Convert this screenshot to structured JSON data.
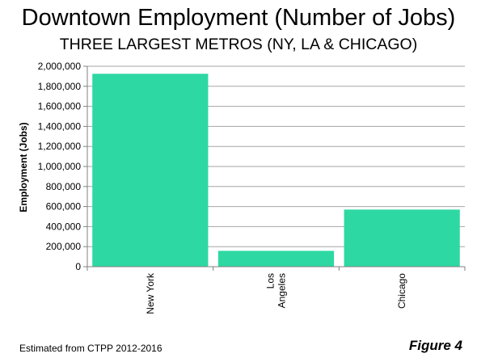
{
  "chart_data": {
    "type": "bar",
    "title": "Downtown Employment (Number of Jobs)",
    "subtitle": "THREE LARGEST METROS (NY, LA & CHICAGO)",
    "xlabel": "",
    "ylabel": "Employment (Jobs)",
    "categories": [
      [
        "New York"
      ],
      [
        "Los",
        "Angeles"
      ],
      [
        "Chicago"
      ]
    ],
    "values": [
      1925000,
      158000,
      570000
    ],
    "ylim": [
      0,
      2000000
    ],
    "yticks": [
      0,
      200000,
      400000,
      600000,
      800000,
      1000000,
      1200000,
      1400000,
      1600000,
      1800000,
      2000000
    ],
    "ytick_labels": [
      "0",
      "200,000",
      "400,000",
      "600,000",
      "800,000",
      "1,000,000",
      "1,200,000",
      "1,400,000",
      "1,600,000",
      "1,800,000",
      "2,000,000"
    ],
    "grid": true,
    "bar_color": "#2ed8a3",
    "gridline_color": "#a6a6a6"
  },
  "footer": {
    "source_note": "Estimated from CTPP 2012-2016",
    "figure_label": "Figure 4"
  }
}
